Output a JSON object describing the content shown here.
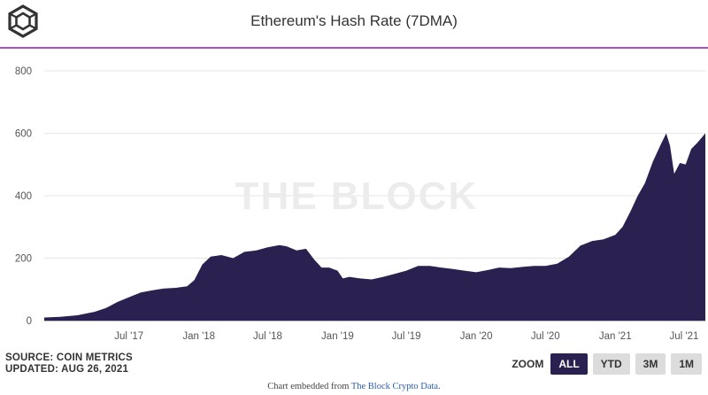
{
  "header": {
    "title": "Ethereum's Hash Rate (7DMA)"
  },
  "watermark": "THE BLOCK",
  "source": {
    "line1": "SOURCE: COIN METRICS",
    "line2": "UPDATED: AUG 26, 2021"
  },
  "zoom": {
    "label": "ZOOM",
    "buttons": [
      "ALL",
      "YTD",
      "3M",
      "1M"
    ],
    "active": "ALL"
  },
  "footer": {
    "prefix": "Chart embedded from ",
    "link": "The Block Crypto Data",
    "suffix": "."
  },
  "colors": {
    "area": "#2a2150",
    "accent_rule": "#b14cc9",
    "gridline": "#e6e6e6"
  },
  "chart_data": {
    "type": "area",
    "title": "Ethereum's Hash Rate (7DMA)",
    "xlabel": "",
    "ylabel": "",
    "ylim": [
      0,
      800
    ],
    "yticks": [
      0,
      200,
      400,
      600,
      800
    ],
    "xlim": [
      "2016-11-20",
      "2021-08-26"
    ],
    "xticks": [
      {
        "date": "2017-07-01",
        "label": "Jul '17"
      },
      {
        "date": "2018-01-01",
        "label": "Jan '18"
      },
      {
        "date": "2018-07-01",
        "label": "Jul '18"
      },
      {
        "date": "2019-01-01",
        "label": "Jan '19"
      },
      {
        "date": "2019-07-01",
        "label": "Jul '19"
      },
      {
        "date": "2020-01-01",
        "label": "Jan '20"
      },
      {
        "date": "2020-07-01",
        "label": "Jul '20"
      },
      {
        "date": "2021-01-01",
        "label": "Jan '21"
      },
      {
        "date": "2021-07-01",
        "label": "Jul '21"
      }
    ],
    "grid": true,
    "legend": "none",
    "series": [
      {
        "points": [
          [
            "2016-11-20",
            10
          ],
          [
            "2017-01-01",
            12
          ],
          [
            "2017-02-15",
            17
          ],
          [
            "2017-04-01",
            28
          ],
          [
            "2017-05-01",
            40
          ],
          [
            "2017-06-01",
            60
          ],
          [
            "2017-07-01",
            75
          ],
          [
            "2017-08-01",
            90
          ],
          [
            "2017-09-01",
            97
          ],
          [
            "2017-10-01",
            103
          ],
          [
            "2017-11-01",
            105
          ],
          [
            "2017-12-01",
            110
          ],
          [
            "2017-12-20",
            130
          ],
          [
            "2018-01-10",
            180
          ],
          [
            "2018-02-01",
            205
          ],
          [
            "2018-03-01",
            210
          ],
          [
            "2018-04-01",
            200
          ],
          [
            "2018-05-01",
            220
          ],
          [
            "2018-06-01",
            225
          ],
          [
            "2018-07-01",
            235
          ],
          [
            "2018-08-01",
            242
          ],
          [
            "2018-08-20",
            238
          ],
          [
            "2018-09-15",
            225
          ],
          [
            "2018-10-10",
            230
          ],
          [
            "2018-11-01",
            195
          ],
          [
            "2018-11-20",
            170
          ],
          [
            "2018-12-10",
            170
          ],
          [
            "2019-01-01",
            160
          ],
          [
            "2019-01-15",
            135
          ],
          [
            "2019-02-01",
            140
          ],
          [
            "2019-03-01",
            135
          ],
          [
            "2019-04-01",
            132
          ],
          [
            "2019-05-01",
            140
          ],
          [
            "2019-06-01",
            150
          ],
          [
            "2019-07-01",
            160
          ],
          [
            "2019-08-01",
            175
          ],
          [
            "2019-09-01",
            175
          ],
          [
            "2019-10-01",
            170
          ],
          [
            "2019-11-01",
            165
          ],
          [
            "2019-12-01",
            160
          ],
          [
            "2020-01-01",
            155
          ],
          [
            "2020-02-01",
            162
          ],
          [
            "2020-03-01",
            170
          ],
          [
            "2020-04-01",
            168
          ],
          [
            "2020-05-01",
            172
          ],
          [
            "2020-06-01",
            175
          ],
          [
            "2020-07-01",
            175
          ],
          [
            "2020-08-01",
            182
          ],
          [
            "2020-09-01",
            205
          ],
          [
            "2020-10-01",
            240
          ],
          [
            "2020-11-01",
            255
          ],
          [
            "2020-12-01",
            260
          ],
          [
            "2021-01-01",
            275
          ],
          [
            "2021-01-20",
            300
          ],
          [
            "2021-02-10",
            350
          ],
          [
            "2021-03-01",
            400
          ],
          [
            "2021-03-20",
            440
          ],
          [
            "2021-04-10",
            510
          ],
          [
            "2021-05-01",
            565
          ],
          [
            "2021-05-15",
            600
          ],
          [
            "2021-05-25",
            560
          ],
          [
            "2021-06-05",
            470
          ],
          [
            "2021-06-20",
            505
          ],
          [
            "2021-07-05",
            500
          ],
          [
            "2021-07-20",
            550
          ],
          [
            "2021-08-05",
            570
          ],
          [
            "2021-08-26",
            600
          ]
        ]
      }
    ]
  }
}
